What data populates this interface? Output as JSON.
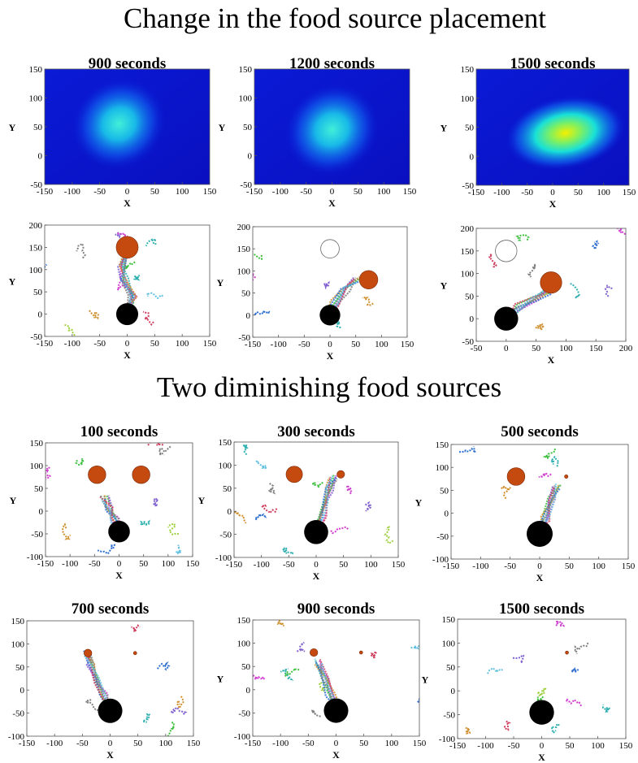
{
  "figure": {
    "section_titles": [
      "Change in the food source placement",
      "Two diminishing food sources"
    ]
  },
  "colors": {
    "food": "#c44a10",
    "nest": "#000000",
    "depleted": "#ffffff",
    "heat_low": "#0a1ad6",
    "heat_mid": "#18e0d8",
    "heat_high": "#f2f000"
  },
  "chart_data": [
    {
      "type": "heatmap",
      "title": "900 seconds",
      "xlabel": "X",
      "ylabel": "Y",
      "xlim": [
        -150,
        150
      ],
      "ylim": [
        -50,
        150
      ],
      "xticks": [
        "-150",
        "-100",
        "-50",
        "0",
        "50",
        "100",
        "150"
      ],
      "yticks": [
        "-50",
        "0",
        "50",
        "100",
        "150"
      ],
      "hotspots": [
        {
          "x": -15,
          "y": 55,
          "peak": 0.45
        }
      ],
      "max_value": 0.45
    },
    {
      "type": "heatmap",
      "title": "1200 seconds",
      "xlabel": "X",
      "ylabel": "Y",
      "xlim": [
        -150,
        150
      ],
      "ylim": [
        -50,
        150
      ],
      "xticks": [
        "-150",
        "-100",
        "-50",
        "0",
        "50",
        "100",
        "150"
      ],
      "yticks": [
        "-50",
        "0",
        "50",
        "100",
        "150"
      ],
      "hotspots": [
        {
          "x": 0,
          "y": 45,
          "peak": 0.5
        }
      ],
      "max_value": 0.5
    },
    {
      "type": "heatmap",
      "title": "1500 seconds",
      "xlabel": "X",
      "ylabel": "Y",
      "xlim": [
        -150,
        150
      ],
      "ylim": [
        -50,
        150
      ],
      "xticks": [
        "-150",
        "-100",
        "-50",
        "0",
        "50",
        "100",
        "150"
      ],
      "yticks": [
        "-50",
        "0",
        "50",
        "100",
        "150"
      ],
      "hotspots": [
        {
          "x": 25,
          "y": 40,
          "peak": 0.9
        }
      ],
      "max_value": 0.9
    },
    {
      "type": "scatter",
      "title": "",
      "xlabel": "X",
      "ylabel": "Y",
      "xlim": [
        -150,
        150
      ],
      "ylim": [
        -50,
        200
      ],
      "xticks": [
        "-150",
        "-100",
        "-50",
        "0",
        "50",
        "100",
        "150"
      ],
      "yticks": [
        "-50",
        "0",
        "50",
        "100",
        "150",
        "200"
      ],
      "nest": {
        "x": 0,
        "y": 0,
        "r": 20
      },
      "food_sources": [
        {
          "x": 0,
          "y": 150,
          "r": 20,
          "state": "active"
        }
      ],
      "trail": [
        [
          0,
          0
        ],
        [
          5,
          15
        ],
        [
          10,
          40
        ],
        [
          -5,
          75
        ],
        [
          -10,
          110
        ],
        [
          0,
          140
        ]
      ]
    },
    {
      "type": "scatter",
      "title": "",
      "xlabel": "X",
      "ylabel": "Y",
      "xlim": [
        -150,
        150
      ],
      "ylim": [
        -50,
        200
      ],
      "xticks": [
        "-150",
        "-100",
        "-50",
        "0",
        "50",
        "100",
        "150"
      ],
      "yticks": [
        "-50",
        "0",
        "50",
        "100",
        "150",
        "200"
      ],
      "nest": {
        "x": 0,
        "y": 0,
        "r": 20
      },
      "food_sources": [
        {
          "x": 0,
          "y": 150,
          "r": 18,
          "state": "depleted"
        },
        {
          "x": 75,
          "y": 80,
          "r": 18,
          "state": "active"
        }
      ],
      "trail": [
        [
          0,
          0
        ],
        [
          10,
          25
        ],
        [
          30,
          60
        ],
        [
          55,
          80
        ]
      ]
    },
    {
      "type": "scatter",
      "title": "",
      "xlabel": "X",
      "ylabel": "Y",
      "xlim": [
        -50,
        200
      ],
      "ylim": [
        -50,
        200
      ],
      "xticks": [
        "-50",
        "0",
        "50",
        "100",
        "150",
        "200"
      ],
      "yticks": [
        "-50",
        "0",
        "50",
        "100",
        "150",
        "200"
      ],
      "nest": {
        "x": 0,
        "y": 0,
        "r": 20
      },
      "food_sources": [
        {
          "x": 0,
          "y": 150,
          "r": 18,
          "state": "depleted"
        },
        {
          "x": 75,
          "y": 80,
          "r": 18,
          "state": "active"
        }
      ],
      "trail": [
        [
          0,
          0
        ],
        [
          20,
          25
        ],
        [
          50,
          45
        ],
        [
          70,
          60
        ],
        [
          75,
          75
        ]
      ]
    },
    {
      "type": "scatter",
      "title": "100 seconds",
      "xlabel": "X",
      "ylabel": "Y",
      "xlim": [
        -150,
        150
      ],
      "ylim": [
        -100,
        150
      ],
      "xticks": [
        "-150",
        "-100",
        "-50",
        "0",
        "50",
        "100",
        "150"
      ],
      "yticks": [
        "-100",
        "-50",
        "0",
        "50",
        "100",
        "150"
      ],
      "nest": {
        "x": 0,
        "y": -45,
        "r": 22
      },
      "food_sources": [
        {
          "x": -45,
          "y": 80,
          "r": 18,
          "state": "active"
        },
        {
          "x": 45,
          "y": 80,
          "r": 18,
          "state": "active"
        }
      ],
      "trail": [
        [
          0,
          -45
        ],
        [
          -10,
          -20
        ],
        [
          -20,
          5
        ],
        [
          -30,
          30
        ]
      ]
    },
    {
      "type": "scatter",
      "title": "300 seconds",
      "xlabel": "X",
      "ylabel": "Y",
      "xlim": [
        -150,
        150
      ],
      "ylim": [
        -100,
        150
      ],
      "xticks": [
        "-150",
        "-100",
        "-50",
        "0",
        "50",
        "100",
        "150"
      ],
      "yticks": [
        "-100",
        "-50",
        "0",
        "50",
        "100",
        "150"
      ],
      "nest": {
        "x": 0,
        "y": -45,
        "r": 22
      },
      "food_sources": [
        {
          "x": -40,
          "y": 80,
          "r": 15,
          "state": "active"
        },
        {
          "x": 45,
          "y": 80,
          "r": 7,
          "state": "active"
        }
      ],
      "trail": [
        [
          0,
          -45
        ],
        [
          10,
          -10
        ],
        [
          20,
          20
        ],
        [
          25,
          50
        ],
        [
          30,
          75
        ]
      ]
    },
    {
      "type": "scatter",
      "title": "500 seconds",
      "xlabel": "X",
      "ylabel": "Y",
      "xlim": [
        -150,
        150
      ],
      "ylim": [
        -100,
        150
      ],
      "xticks": [
        "-150",
        "-100",
        "-50",
        "0",
        "50",
        "100",
        "150"
      ],
      "yticks": [
        "-100",
        "-50",
        "0",
        "50",
        "100",
        "150"
      ],
      "nest": {
        "x": 0,
        "y": -45,
        "r": 22
      },
      "food_sources": [
        {
          "x": -40,
          "y": 80,
          "r": 15,
          "state": "active"
        },
        {
          "x": 45,
          "y": 80,
          "r": 3,
          "state": "active"
        }
      ],
      "trail": [
        [
          0,
          -45
        ],
        [
          10,
          -10
        ],
        [
          20,
          30
        ],
        [
          30,
          60
        ]
      ]
    },
    {
      "type": "scatter",
      "title": "700 seconds",
      "xlabel": "X",
      "ylabel": "Y",
      "xlim": [
        -150,
        150
      ],
      "ylim": [
        -100,
        150
      ],
      "xticks": [
        "-150",
        "-100",
        "-50",
        "0",
        "50",
        "100",
        "150"
      ],
      "yticks": [
        "-100",
        "-50",
        "0",
        "50",
        "100",
        "150"
      ],
      "nest": {
        "x": 0,
        "y": -45,
        "r": 22
      },
      "food_sources": [
        {
          "x": -40,
          "y": 80,
          "r": 7,
          "state": "active"
        },
        {
          "x": 45,
          "y": 80,
          "r": 3,
          "state": "active"
        }
      ],
      "trail": [
        [
          0,
          -45
        ],
        [
          -10,
          -15
        ],
        [
          -25,
          20
        ],
        [
          -35,
          60
        ],
        [
          -40,
          80
        ]
      ]
    },
    {
      "type": "scatter",
      "title": "900 seconds",
      "xlabel": "X",
      "ylabel": "Y",
      "xlim": [
        -150,
        150
      ],
      "ylim": [
        -100,
        150
      ],
      "xticks": [
        "-150",
        "-100",
        "-50",
        "0",
        "50",
        "100",
        "150"
      ],
      "yticks": [
        "-100",
        "-50",
        "0",
        "50",
        "100",
        "150"
      ],
      "nest": {
        "x": 0,
        "y": -45,
        "r": 22
      },
      "food_sources": [
        {
          "x": -40,
          "y": 80,
          "r": 7,
          "state": "active"
        },
        {
          "x": 45,
          "y": 80,
          "r": 2,
          "state": "active"
        }
      ],
      "trail": [
        [
          0,
          -45
        ],
        [
          -10,
          -10
        ],
        [
          -20,
          25
        ],
        [
          -30,
          60
        ]
      ]
    },
    {
      "type": "scatter",
      "title": "1500 seconds",
      "xlabel": "X",
      "ylabel": "Y",
      "xlim": [
        -150,
        150
      ],
      "ylim": [
        -100,
        150
      ],
      "xticks": [
        "-150",
        "-100",
        "-50",
        "0",
        "50",
        "100",
        "150"
      ],
      "yticks": [
        "-100",
        "-50",
        "0",
        "50",
        "100",
        "150"
      ],
      "nest": {
        "x": 0,
        "y": -45,
        "r": 22
      },
      "food_sources": [
        {
          "x": 45,
          "y": 80,
          "r": 2,
          "state": "active"
        }
      ],
      "trail": []
    }
  ]
}
